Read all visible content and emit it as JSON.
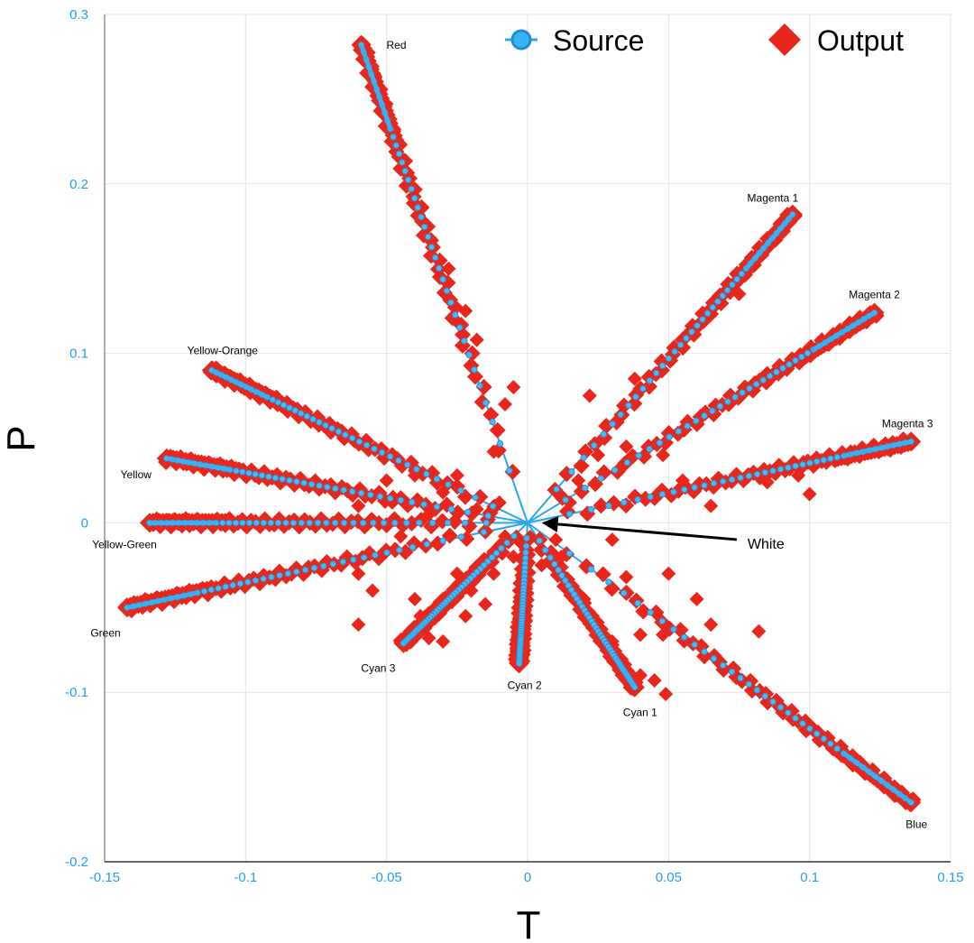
{
  "chart_data": {
    "type": "scatter",
    "xlabel": "T",
    "ylabel": "P",
    "xlim": [
      -0.15,
      0.15
    ],
    "ylim": [
      -0.2,
      0.3
    ],
    "xticks": [
      "-0.15",
      "-0.1",
      "-0.05",
      "0",
      "0.05",
      "0.1",
      "0.15"
    ],
    "yticks": [
      "-0.2",
      "-0.1",
      "0",
      "0.1",
      "0.2",
      "0.3"
    ],
    "x_tick_values": [
      -0.15,
      -0.1,
      -0.05,
      0,
      0.05,
      0.1,
      0.15
    ],
    "y_tick_values": [
      -0.2,
      -0.1,
      0,
      0.1,
      0.2,
      0.3
    ],
    "grid": true,
    "legend_position": "top",
    "colors": {
      "source": "#2aa6ec",
      "output": "#e8261c",
      "ticks": "#1ea0f2"
    },
    "series": [
      {
        "name": "Source",
        "marker": "circle-line"
      },
      {
        "name": "Output",
        "marker": "diamond"
      }
    ],
    "rays": [
      {
        "name": "Red",
        "end": [
          -0.059,
          0.282
        ]
      },
      {
        "name": "Magenta 1",
        "end": [
          0.094,
          0.182
        ]
      },
      {
        "name": "Magenta 2",
        "end": [
          0.123,
          0.124
        ]
      },
      {
        "name": "Magenta 3",
        "end": [
          0.136,
          0.048
        ]
      },
      {
        "name": "Yellow-Orange",
        "end": [
          -0.112,
          0.09
        ]
      },
      {
        "name": "Yellow",
        "end": [
          -0.128,
          0.038
        ]
      },
      {
        "name": "Yellow-Green",
        "end": [
          -0.134,
          0.0
        ]
      },
      {
        "name": "Green",
        "end": [
          -0.142,
          -0.05
        ]
      },
      {
        "name": "Cyan 3",
        "end": [
          -0.044,
          -0.071
        ]
      },
      {
        "name": "Cyan 2",
        "end": [
          -0.003,
          -0.083
        ]
      },
      {
        "name": "Cyan 1",
        "end": [
          0.038,
          -0.097
        ]
      },
      {
        "name": "Blue",
        "end": [
          0.136,
          -0.165
        ]
      }
    ],
    "scattered_output_points": [
      [
        -0.012,
        0.042
      ],
      [
        -0.008,
        0.07
      ],
      [
        -0.005,
        0.08
      ],
      [
        -0.018,
        0.108
      ],
      [
        -0.022,
        0.125
      ],
      [
        -0.028,
        0.15
      ],
      [
        0.018,
        0.025
      ],
      [
        0.025,
        0.04
      ],
      [
        0.015,
        0.012
      ],
      [
        0.01,
        -0.01
      ],
      [
        0.048,
        0.04
      ],
      [
        0.055,
        0.025
      ],
      [
        0.085,
        0.024
      ],
      [
        0.1,
        0.017
      ],
      [
        0.096,
        0.028
      ],
      [
        0.075,
        0.135
      ],
      [
        0.038,
        0.085
      ],
      [
        0.022,
        0.075
      ],
      [
        0.035,
        0.045
      ],
      [
        0.065,
        0.01
      ],
      [
        0.03,
        -0.01
      ],
      [
        0.05,
        -0.03
      ],
      [
        0.06,
        -0.045
      ],
      [
        0.065,
        -0.06
      ],
      [
        0.082,
        -0.064
      ],
      [
        0.03,
        -0.07
      ],
      [
        0.04,
        -0.066
      ],
      [
        0.048,
        -0.066
      ],
      [
        0.04,
        -0.09
      ],
      [
        0.045,
        -0.093
      ],
      [
        0.049,
        -0.101
      ],
      [
        0.02,
        -0.045
      ],
      [
        0.035,
        -0.032
      ],
      [
        0.012,
        -0.02
      ],
      [
        -0.025,
        -0.03
      ],
      [
        -0.03,
        -0.045
      ],
      [
        -0.02,
        -0.04
      ],
      [
        -0.022,
        -0.055
      ],
      [
        -0.015,
        -0.048
      ],
      [
        -0.03,
        -0.07
      ],
      [
        -0.035,
        -0.068
      ],
      [
        -0.012,
        -0.03
      ],
      [
        -0.005,
        -0.02
      ],
      [
        0.005,
        -0.025
      ],
      [
        -0.04,
        0.028
      ],
      [
        -0.025,
        0.028
      ],
      [
        -0.05,
        0.025
      ],
      [
        -0.06,
        0.01
      ],
      [
        -0.035,
        0.005
      ],
      [
        -0.045,
        -0.008
      ],
      [
        -0.06,
        -0.03
      ],
      [
        -0.055,
        -0.04
      ],
      [
        -0.04,
        -0.045
      ],
      [
        -0.038,
        -0.055
      ],
      [
        -0.06,
        -0.06
      ],
      [
        -0.048,
        0.012
      ],
      [
        -0.03,
        0.018
      ],
      [
        -0.018,
        0.008
      ],
      [
        -0.01,
        0.012
      ],
      [
        -0.008,
        -0.008
      ]
    ],
    "annotation": {
      "text": "White",
      "target": [
        0.005,
        0.0
      ],
      "text_at": [
        0.078,
        -0.012
      ]
    }
  }
}
